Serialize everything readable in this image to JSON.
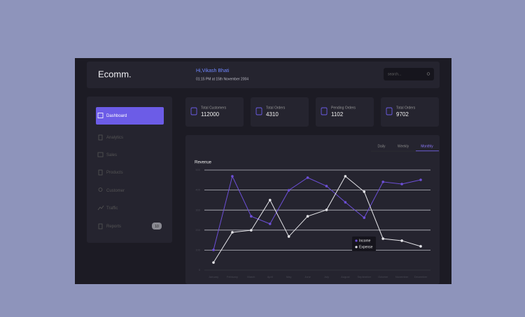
{
  "header": {
    "brand": "Ecomm.",
    "greeting": "Hi,Vikash Bhati",
    "datetime": "01:15 PM at 15th November 2004",
    "search_placeholder": "search..."
  },
  "sidebar": {
    "items": [
      "Dashboard",
      "Analytics",
      "Sales",
      "Products",
      "Customer",
      "Traffic",
      "Reports"
    ],
    "reports_badge": "10"
  },
  "stats": [
    {
      "label": "Total Customers",
      "value": 112000
    },
    {
      "label": "Total Orders",
      "value": 4310
    },
    {
      "label": "Pending Orders",
      "value": 1102
    },
    {
      "label": "Total Orders",
      "value": 9702
    }
  ],
  "chart_tabs": [
    "Daily",
    "Weekly",
    "Monthly"
  ],
  "chart_data": {
    "type": "line",
    "title": "Revenue",
    "categories": [
      "January",
      "February",
      "March",
      "April",
      "May",
      "June",
      "July",
      "August",
      "September",
      "October",
      "November",
      "December"
    ],
    "series": [
      {
        "name": "Income",
        "color": "#6d4fd8",
        "values": [
          101,
          469,
          269,
          231,
          399,
          462,
          420,
          339,
          262,
          441,
          430,
          451
        ]
      },
      {
        "name": "Expense",
        "color": "#e6e6ea",
        "values": [
          38,
          189,
          199,
          350,
          168,
          269,
          301,
          469,
          392,
          157,
          147,
          119
        ]
      }
    ],
    "ylim": [
      0,
      500
    ],
    "yticks": [
      0,
      100,
      200,
      300,
      400,
      500
    ],
    "grid": true
  }
}
